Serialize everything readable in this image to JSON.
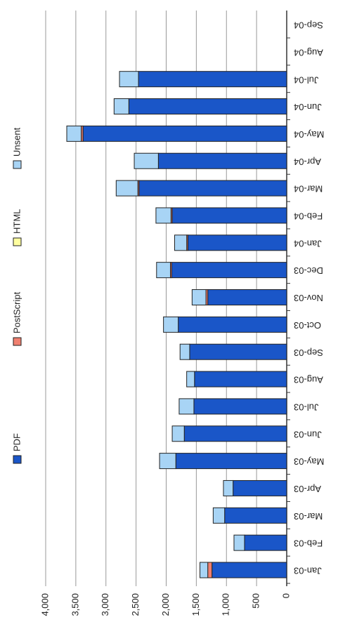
{
  "chart_data": {
    "type": "bar",
    "stacked": true,
    "categories": [
      "Jan-03",
      "Feb-03",
      "Mar-03",
      "Apr-03",
      "May-03",
      "Jun-03",
      "Jul-03",
      "Aug-03",
      "Sep-03",
      "Oct-03",
      "Nov-03",
      "Dec-03",
      "Jan-04",
      "Feb-04",
      "Mar-04",
      "Apr-04",
      "May-04",
      "Jun-04",
      "Jul-04",
      "Aug-04",
      "Sep-04"
    ],
    "series": [
      {
        "name": "PDF",
        "color": "#1a56c8",
        "values": [
          1240,
          700,
          1030,
          890,
          1840,
          1700,
          1540,
          1530,
          1610,
          1800,
          1310,
          1910,
          1640,
          1900,
          2450,
          2130,
          3380,
          2620,
          2460,
          null,
          null
        ]
      },
      {
        "name": "PostScript",
        "color": "#f08070",
        "values": [
          70,
          0,
          0,
          0,
          0,
          0,
          0,
          0,
          0,
          0,
          30,
          20,
          20,
          20,
          20,
          0,
          30,
          0,
          0,
          null,
          null
        ]
      },
      {
        "name": "HTML",
        "color": "#ffffa0",
        "values": [
          0,
          0,
          0,
          0,
          0,
          0,
          0,
          0,
          0,
          0,
          0,
          0,
          0,
          0,
          0,
          0,
          0,
          0,
          0,
          null,
          null
        ]
      },
      {
        "name": "Unsent",
        "color": "#a8d4f5",
        "values": [
          130,
          175,
          190,
          160,
          270,
          200,
          245,
          130,
          160,
          245,
          230,
          230,
          200,
          250,
          360,
          400,
          240,
          245,
          315,
          null,
          null
        ]
      }
    ],
    "ylim": [
      0,
      4000
    ],
    "yticks": [
      0,
      500,
      {
        "value": 1000,
        "label": "1,000"
      },
      {
        "value": 1500,
        "label": "1,500"
      },
      {
        "value": 2000,
        "label": "2,000"
      },
      {
        "value": 2500,
        "label": "2,500"
      },
      {
        "value": 3000,
        "label": "3,000"
      },
      {
        "value": 3500,
        "label": "3,500"
      },
      {
        "value": 4000,
        "label": "4,000"
      }
    ],
    "grid": true
  }
}
